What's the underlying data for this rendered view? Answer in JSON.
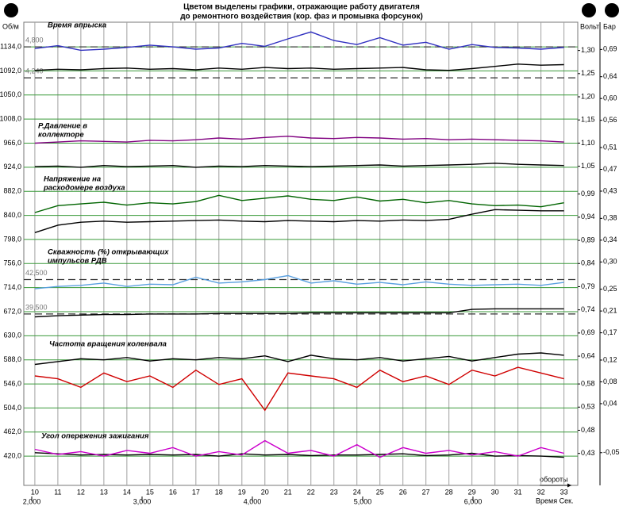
{
  "chart_data": {
    "type": "line",
    "title": [
      "Цветом выделены графики, отражающие работу двигателя",
      "до ремонтного воздействия (кор. фаз и промывка форсунок)"
    ],
    "y_title": "Об/м",
    "ylim": [
      369,
      1177
    ],
    "yticks": [
      {
        "value": 1134,
        "label": "1134,0"
      },
      {
        "value": 1092,
        "label": "1092,0"
      },
      {
        "value": 1050,
        "label": "1050,0"
      },
      {
        "value": 1008,
        "label": "1008,0"
      },
      {
        "value": 966,
        "label": "966,0"
      },
      {
        "value": 924,
        "label": "924,0"
      },
      {
        "value": 882,
        "label": "882,0"
      },
      {
        "value": 840,
        "label": "840,0"
      },
      {
        "value": 798,
        "label": "798,0"
      },
      {
        "value": 756,
        "label": "756,0"
      },
      {
        "value": 714,
        "label": "714,0"
      },
      {
        "value": 672,
        "label": "672,0"
      },
      {
        "value": 630,
        "label": "630,0"
      },
      {
        "value": 588,
        "label": "588,0"
      },
      {
        "value": 546,
        "label": "546,0"
      },
      {
        "value": 504,
        "label": "504,0"
      },
      {
        "value": 462,
        "label": "462,0"
      },
      {
        "value": 420,
        "label": "420,0"
      }
    ],
    "y2_title": "Вольт",
    "y2lim": [
      0.361,
      1.361
    ],
    "y2ticks": [
      {
        "value": 1.3,
        "label": "1,30"
      },
      {
        "value": 1.25,
        "label": "1,25"
      },
      {
        "value": 1.2,
        "label": "1,20"
      },
      {
        "value": 1.15,
        "label": "1,15"
      },
      {
        "value": 1.1,
        "label": "1,10"
      },
      {
        "value": 1.05,
        "label": "1,05"
      },
      {
        "value": 0.99,
        "label": "0,99"
      },
      {
        "value": 0.94,
        "label": "0,94"
      },
      {
        "value": 0.89,
        "label": "0,89"
      },
      {
        "value": 0.84,
        "label": "0,84"
      },
      {
        "value": 0.79,
        "label": "0,79"
      },
      {
        "value": 0.74,
        "label": "0,74"
      },
      {
        "value": 0.69,
        "label": "0,69"
      },
      {
        "value": 0.64,
        "label": "0,64"
      },
      {
        "value": 0.58,
        "label": "0,58"
      },
      {
        "value": 0.53,
        "label": "0,53"
      },
      {
        "value": 0.48,
        "label": "0,48"
      },
      {
        "value": 0.43,
        "label": "0,43"
      }
    ],
    "y3_title": "Бар",
    "y3lim": [
      -0.11,
      0.74
    ],
    "y3ticks": [
      {
        "value": 0.69,
        "label": "0,69"
      },
      {
        "value": 0.64,
        "label": "0,64"
      },
      {
        "value": 0.6,
        "label": "0,60"
      },
      {
        "value": 0.56,
        "label": "0,56"
      },
      {
        "value": 0.51,
        "label": "0,51"
      },
      {
        "value": 0.47,
        "label": "0,47"
      },
      {
        "value": 0.43,
        "label": "0,43"
      },
      {
        "value": 0.38,
        "label": "0,38"
      },
      {
        "value": 0.34,
        "label": "0,34"
      },
      {
        "value": 0.3,
        "label": "0,30"
      },
      {
        "value": 0.25,
        "label": "0,25"
      },
      {
        "value": 0.21,
        "label": "0,21"
      },
      {
        "value": 0.17,
        "label": "0,17"
      },
      {
        "value": 0.12,
        "label": "0,12"
      },
      {
        "value": 0.08,
        "label": "0,08"
      },
      {
        "value": 0.04,
        "label": "0,04"
      },
      {
        "value": -0.05,
        "label": "-0,05"
      }
    ],
    "xlim": [
      9.52,
      33.6
    ],
    "xticks": [
      10,
      11,
      12,
      13,
      14,
      15,
      16,
      17,
      18,
      19,
      20,
      21,
      22,
      23,
      24,
      25,
      26,
      27,
      28,
      29,
      30,
      31,
      32,
      33
    ],
    "x_title": "Время Сек.",
    "x2_title": "обороты",
    "x2lim": [
      1.928,
      6.95
    ],
    "x2ticks": [
      {
        "value": 2,
        "label": "2,000"
      },
      {
        "value": 3,
        "label": "3,000"
      },
      {
        "value": 4,
        "label": "4,000"
      },
      {
        "value": 5,
        "label": "5,000"
      },
      {
        "value": 6,
        "label": "6,000"
      }
    ],
    "grid": true,
    "x": [
      10,
      11,
      12,
      13,
      14,
      15,
      16,
      17,
      18,
      19,
      20,
      21,
      22,
      23,
      24,
      25,
      26,
      27,
      28,
      29,
      30,
      31,
      32,
      33
    ],
    "panel_labels": [
      [
        "Время впрыска"
      ],
      [
        "Р.Давление в",
        "коллекторе"
      ],
      [
        "Напряжение на",
        "расходомере воздуха"
      ],
      [
        "Скважность (%) открывающих",
        "импульсов РДВ"
      ],
      [
        "Частота вращения коленвала"
      ],
      [
        "Угол опережения зажигания"
      ]
    ],
    "annotations": [
      {
        "text": "4,800",
        "y": 1134
      },
      {
        "text": "4,240",
        "y": 1080
      },
      {
        "text": "42,500",
        "y": 728
      },
      {
        "text": "39,500",
        "y": 668
      }
    ],
    "series": [
      {
        "color": "#3030c0",
        "values": [
          1131,
          1136,
          1128,
          1130,
          1133,
          1137,
          1134,
          1130,
          1132,
          1140,
          1135,
          1148,
          1160,
          1145,
          1138,
          1150,
          1137,
          1142,
          1130,
          1138,
          1133,
          1132,
          1130,
          1133
        ]
      },
      {
        "color": "#000000",
        "values": [
          1093,
          1095,
          1094,
          1096,
          1097,
          1095,
          1096,
          1094,
          1097,
          1095,
          1098,
          1096,
          1097,
          1095,
          1096,
          1097,
          1098,
          1094,
          1093,
          1096,
          1100,
          1104,
          1102,
          1103
        ]
      },
      {
        "color": "#800080",
        "values": [
          966,
          968,
          970,
          969,
          968,
          971,
          970,
          972,
          975,
          973,
          976,
          978,
          975,
          974,
          976,
          975,
          973,
          974,
          972,
          973,
          972,
          971,
          970,
          968
        ]
      },
      {
        "color": "#000000",
        "values": [
          925,
          926,
          924,
          927,
          925,
          926,
          927,
          924,
          926,
          925,
          927,
          926,
          925,
          926,
          927,
          928,
          926,
          927,
          928,
          929,
          931,
          929,
          928,
          927
        ]
      },
      {
        "color": "#006400",
        "values": [
          845,
          857,
          860,
          863,
          858,
          862,
          860,
          864,
          875,
          866,
          870,
          874,
          868,
          866,
          872,
          865,
          868,
          862,
          866,
          860,
          857,
          858,
          855,
          862
        ]
      },
      {
        "color": "#000000",
        "values": [
          810,
          823,
          828,
          830,
          828,
          829,
          830,
          831,
          832,
          830,
          829,
          831,
          830,
          829,
          831,
          830,
          832,
          831,
          833,
          842,
          850,
          849,
          848,
          848
        ]
      },
      {
        "color": "#5aa0e0",
        "values": [
          712,
          716,
          718,
          722,
          716,
          720,
          719,
          732,
          722,
          724,
          728,
          735,
          722,
          726,
          720,
          723,
          719,
          724,
          720,
          718,
          719,
          720,
          718,
          723
        ]
      },
      {
        "color": "#000000",
        "values": [
          663,
          665,
          666,
          667,
          667,
          668,
          668,
          668,
          669,
          669,
          669,
          669,
          670,
          670,
          670,
          670,
          670,
          670,
          670,
          676,
          677,
          677,
          677,
          677
        ]
      },
      {
        "color": "#000000",
        "values": [
          580,
          585,
          590,
          588,
          592,
          586,
          590,
          588,
          592,
          590,
          595,
          585,
          596,
          590,
          588,
          592,
          586,
          590,
          594,
          586,
          592,
          598,
          600,
          596
        ]
      },
      {
        "color": "#d00000",
        "values": [
          560,
          555,
          540,
          565,
          550,
          560,
          540,
          570,
          545,
          555,
          500,
          565,
          560,
          555,
          540,
          570,
          550,
          560,
          545,
          570,
          560,
          575,
          565,
          555
        ]
      },
      {
        "color": "#000000",
        "values": [
          426,
          424,
          422,
          423,
          422,
          423,
          422,
          423,
          420,
          424,
          422,
          423,
          421,
          422,
          422,
          423,
          424,
          421,
          422,
          425,
          420,
          421,
          420,
          418
        ]
      },
      {
        "color": "#cc00cc",
        "values": [
          432,
          423,
          428,
          420,
          430,
          425,
          435,
          420,
          428,
          422,
          447,
          425,
          430,
          420,
          440,
          418,
          435,
          425,
          430,
          422,
          428,
          420,
          435,
          425
        ]
      }
    ]
  }
}
